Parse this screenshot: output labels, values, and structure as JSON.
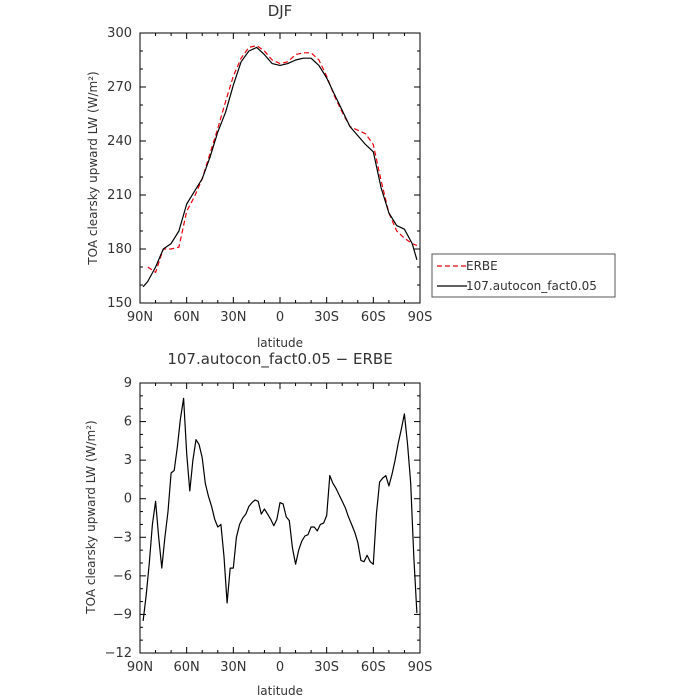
{
  "chart_data": [
    {
      "type": "line",
      "title": "DJF",
      "xlabel": "latitude",
      "ylabel": "TOA clearsky upward LW (W/m²)",
      "x_ticks": [
        90,
        60,
        30,
        0,
        -30,
        -60,
        -90
      ],
      "x_tick_labels": [
        "90N",
        "60N",
        "30N",
        "0",
        "30S",
        "60S",
        "90S"
      ],
      "xlim": [
        90,
        -90
      ],
      "ylim": [
        150,
        300
      ],
      "y_ticks": [
        150,
        180,
        210,
        240,
        270,
        300
      ],
      "y_tick_labels": [
        "150",
        "180",
        "210",
        "240",
        "270",
        "300"
      ],
      "legend_position": "right-bottom, outside",
      "series": [
        {
          "name": "ERBE",
          "color": "#e8000b",
          "dash": "dashed",
          "x": [
            85,
            80,
            75,
            70,
            65,
            60,
            55,
            50,
            45,
            40,
            35,
            30,
            25,
            20,
            15,
            10,
            5,
            0,
            -5,
            -10,
            -15,
            -20,
            -25,
            -30,
            -35,
            -40,
            -45,
            -50,
            -55,
            -60,
            -65,
            -70,
            -75,
            -80,
            -85,
            -88
          ],
          "y": [
            170,
            167,
            180,
            180,
            181,
            201,
            209,
            219,
            233,
            247,
            262,
            276,
            286,
            292,
            293,
            290,
            285,
            283,
            284,
            288,
            289,
            289,
            285,
            276,
            265,
            256,
            248,
            246,
            244,
            238,
            218,
            200,
            190,
            186,
            183,
            182
          ]
        },
        {
          "name": "107.autocon_fact0.05",
          "color": "#000000",
          "dash": "solid",
          "x": [
            88,
            85,
            80,
            75,
            70,
            65,
            60,
            55,
            50,
            45,
            40,
            35,
            30,
            25,
            20,
            15,
            10,
            5,
            0,
            -5,
            -10,
            -15,
            -20,
            -25,
            -30,
            -35,
            -40,
            -45,
            -50,
            -55,
            -60,
            -65,
            -70,
            -75,
            -80,
            -85,
            -88
          ],
          "y": [
            159,
            162,
            170,
            180,
            183,
            190,
            205,
            212,
            219,
            231,
            245,
            256,
            271,
            284,
            290,
            292,
            288,
            283,
            282,
            283,
            285,
            286,
            286,
            282,
            275,
            266,
            257,
            248,
            243,
            238,
            234,
            214,
            200,
            193,
            191,
            183,
            174
          ]
        }
      ]
    },
    {
      "type": "line",
      "title": "107.autocon_fact0.05 − ERBE",
      "xlabel": "latitude",
      "ylabel": "TOA clearsky upward LW (W/m²)",
      "x_ticks": [
        90,
        60,
        30,
        0,
        -30,
        -60,
        -90
      ],
      "x_tick_labels": [
        "90N",
        "60N",
        "30N",
        "0",
        "30S",
        "60S",
        "90S"
      ],
      "xlim": [
        90,
        -90
      ],
      "ylim": [
        -12,
        9
      ],
      "y_ticks": [
        -12,
        -9,
        -6,
        -3,
        0,
        3,
        6,
        9
      ],
      "y_tick_labels": [
        "−12",
        "−9",
        "−6",
        "−3",
        "0",
        "3",
        "6",
        "9"
      ],
      "series": [
        {
          "color": "#000000",
          "dash": "solid",
          "x": [
            88,
            86,
            84,
            82,
            80,
            78,
            76,
            74,
            72,
            70,
            68,
            66,
            64,
            62,
            60,
            58,
            56,
            54,
            52,
            50,
            48,
            46,
            44,
            42,
            40,
            38,
            36,
            34,
            32,
            30,
            28,
            26,
            24,
            22,
            20,
            18,
            16,
            14,
            12,
            10,
            8,
            6,
            4,
            2,
            0,
            -2,
            -4,
            -6,
            -8,
            -10,
            -12,
            -14,
            -16,
            -18,
            -20,
            -22,
            -24,
            -26,
            -28,
            -30,
            -32,
            -34,
            -36,
            -38,
            -40,
            -42,
            -44,
            -46,
            -48,
            -50,
            -52,
            -54,
            -56,
            -58,
            -60,
            -62,
            -64,
            -66,
            -68,
            -70,
            -72,
            -74,
            -76,
            -78,
            -80,
            -82,
            -84,
            -86,
            -88
          ],
          "y": [
            -9.5,
            -7.5,
            -5,
            -2,
            -0.2,
            -3,
            -5.4,
            -3,
            -1,
            2,
            2.2,
            4,
            6.2,
            7.8,
            3.5,
            0.6,
            3,
            4.6,
            4.2,
            3.2,
            1.2,
            0.2,
            -0.6,
            -1.6,
            -2.2,
            -2,
            -4.5,
            -8.1,
            -5.4,
            -5.4,
            -3,
            -2,
            -1.5,
            -1.2,
            -0.6,
            -0.3,
            -0.1,
            -0.2,
            -1.2,
            -0.8,
            -1.2,
            -1.6,
            -2.1,
            -1.6,
            -0.3,
            -0.4,
            -1.4,
            -1.7,
            -3.8,
            -5.1,
            -4,
            -3.3,
            -2.9,
            -2.8,
            -2.2,
            -2.2,
            -2.5,
            -2,
            -1.9,
            -1.3,
            1.8,
            1.2,
            0.8,
            0.3,
            -0.2,
            -0.7,
            -1.4,
            -2,
            -2.6,
            -3.4,
            -4.8,
            -4.9,
            -4.4,
            -4.9,
            -5.1,
            -1.2,
            1.3,
            1.6,
            1.8,
            1,
            1.9,
            3,
            4.3,
            5.4,
            6.6,
            4.2,
            1.2,
            -4.5,
            -8.9
          ]
        }
      ]
    }
  ]
}
